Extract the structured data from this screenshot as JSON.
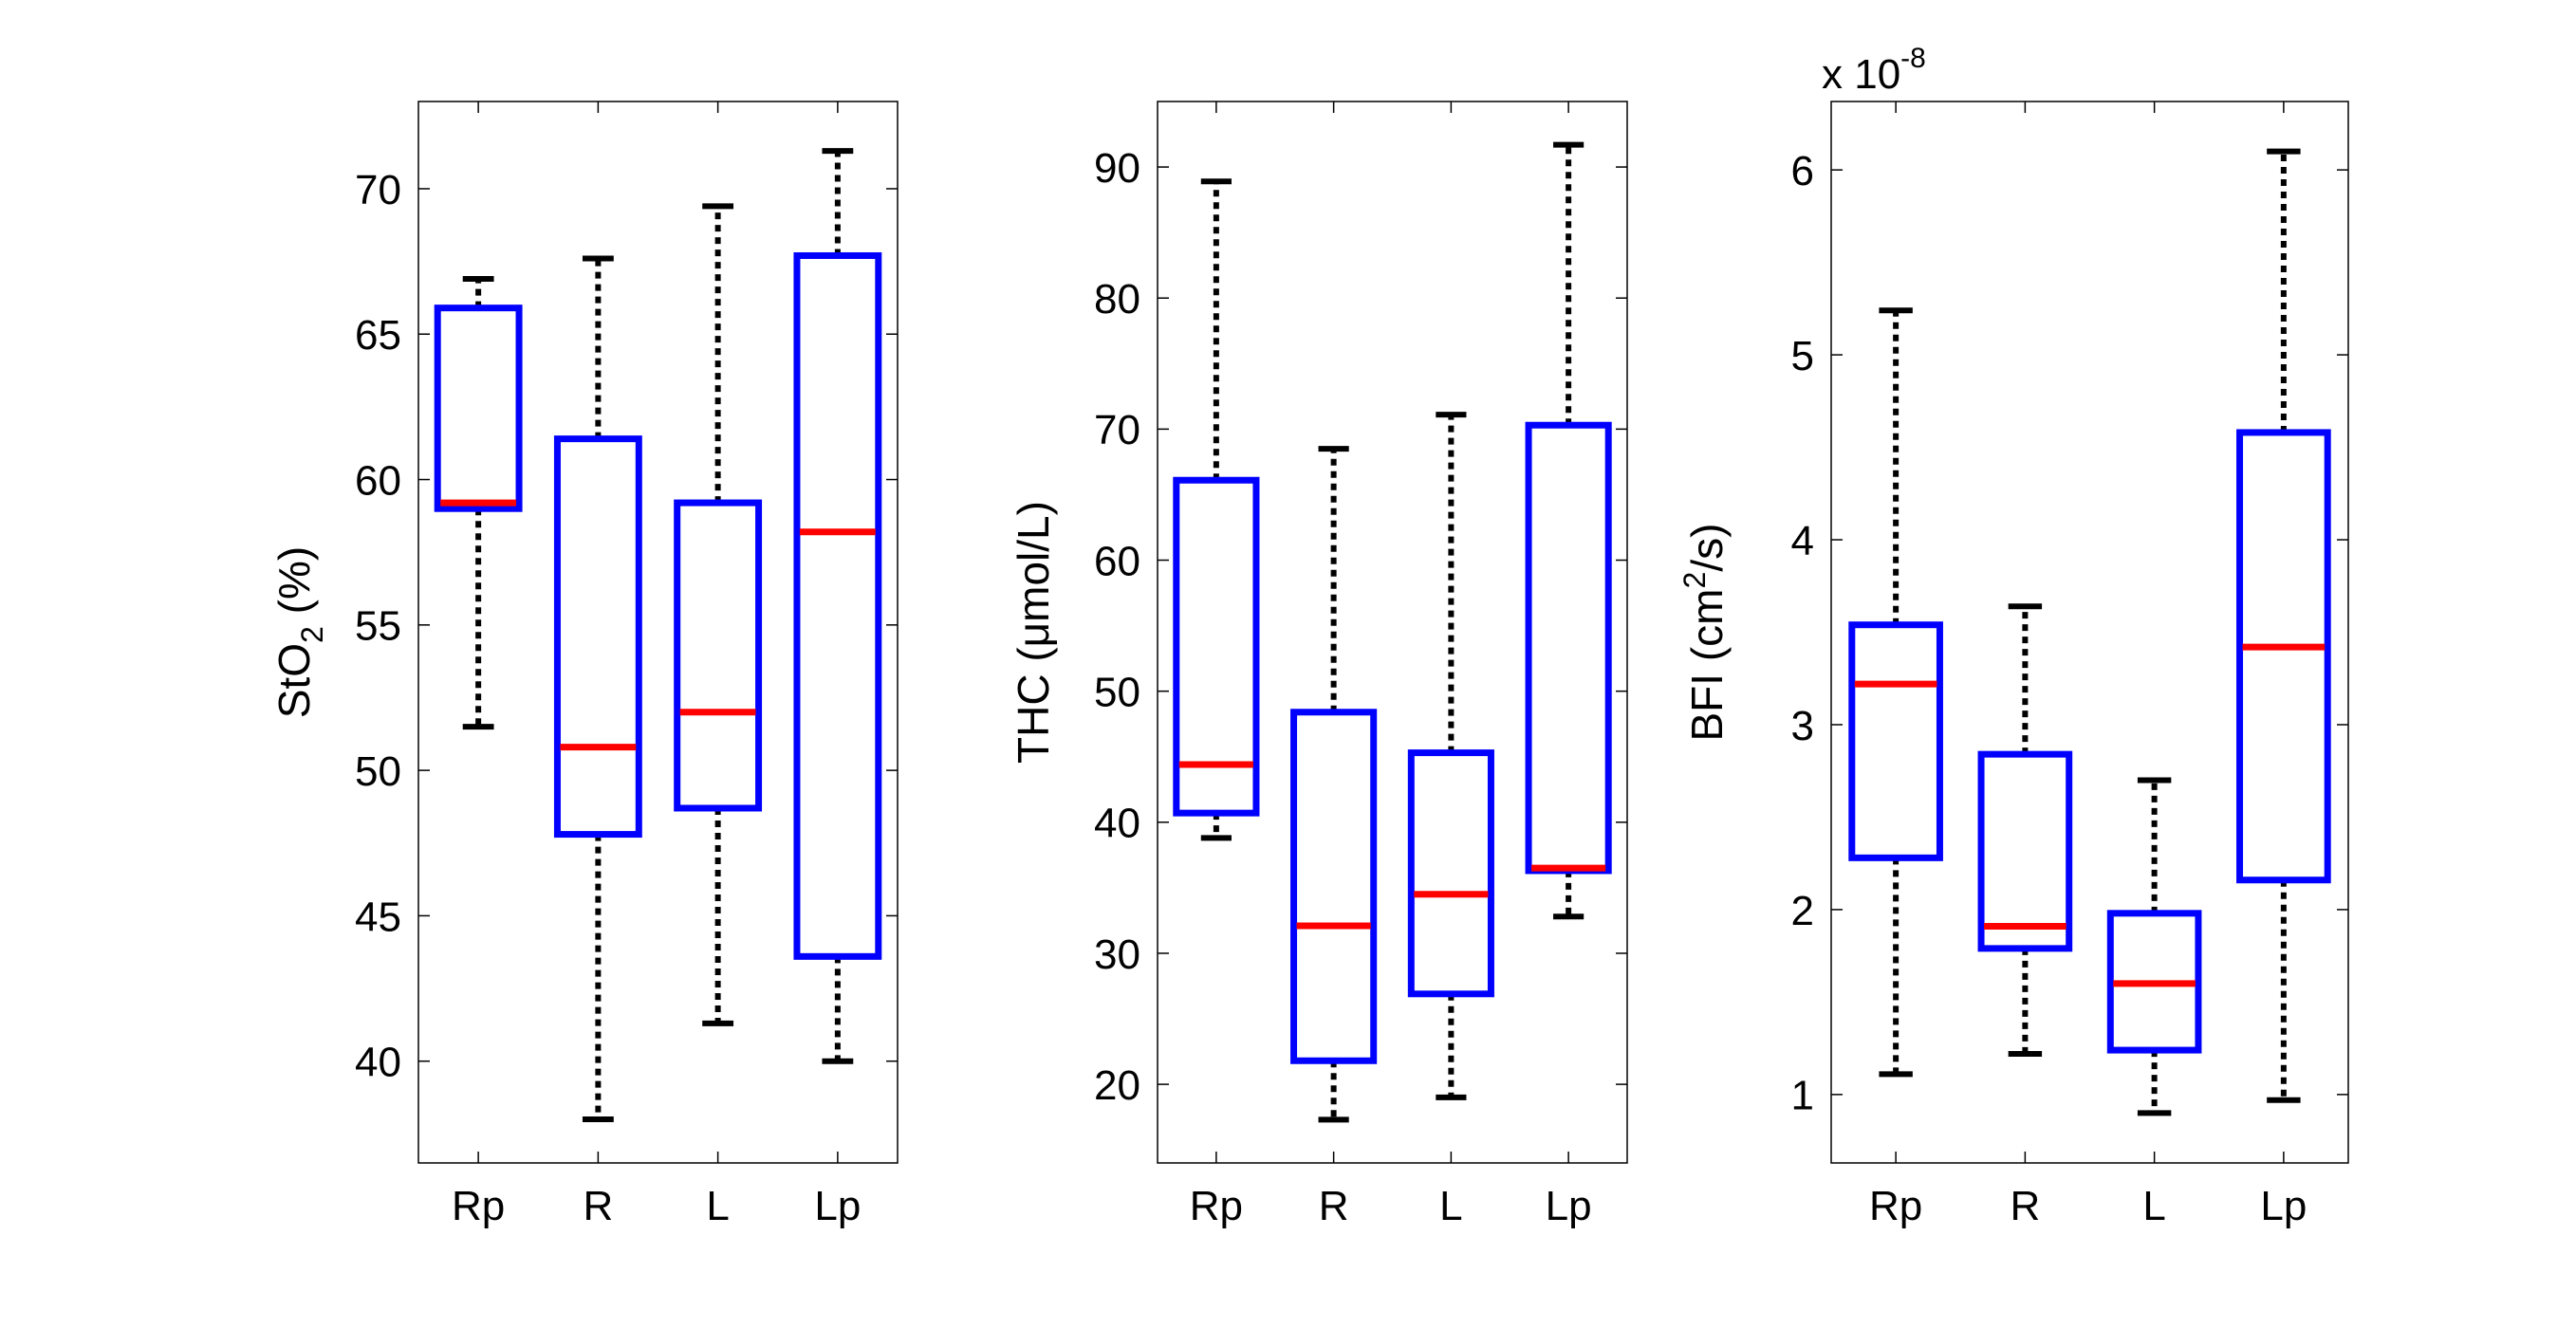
{
  "chart_data": [
    {
      "type": "box",
      "ylabel": "StO",
      "ylabel_sub": "2",
      "ylabel_tail": " (%)",
      "ylim": [
        36.5,
        73
      ],
      "yticks": [
        40,
        45,
        50,
        55,
        60,
        65,
        70
      ],
      "categories": [
        "Rp",
        "R",
        "L",
        "Lp"
      ],
      "boxes": [
        {
          "min": 51.5,
          "q1": 59.0,
          "median": 59.2,
          "q3": 65.9,
          "max": 66.9
        },
        {
          "min": 38.0,
          "q1": 47.8,
          "median": 50.8,
          "q3": 61.4,
          "max": 67.6
        },
        {
          "min": 41.3,
          "q1": 48.7,
          "median": 52.0,
          "q3": 59.2,
          "max": 69.4
        },
        {
          "min": 40.0,
          "q1": 43.6,
          "median": 58.2,
          "q3": 67.7,
          "max": 71.3
        }
      ]
    },
    {
      "type": "box",
      "ylabel": "THC (μmol/L)",
      "ylim": [
        14,
        95
      ],
      "yticks": [
        20,
        30,
        40,
        50,
        60,
        70,
        80,
        90
      ],
      "categories": [
        "Rp",
        "R",
        "L",
        "Lp"
      ],
      "boxes": [
        {
          "min": 38.8,
          "q1": 40.7,
          "median": 44.4,
          "q3": 66.1,
          "max": 88.9
        },
        {
          "min": 17.3,
          "q1": 21.8,
          "median": 32.1,
          "q3": 48.4,
          "max": 68.5
        },
        {
          "min": 19.0,
          "q1": 26.9,
          "median": 34.5,
          "q3": 45.3,
          "max": 71.1
        },
        {
          "min": 32.8,
          "q1": 36.3,
          "median": 36.5,
          "q3": 70.3,
          "max": 91.7
        }
      ]
    },
    {
      "type": "box",
      "ylabel": "BFI (cm",
      "ylabel_sup": "2",
      "ylabel_tail": "/s)",
      "scale_label": "x 10",
      "scale_exp": "-8",
      "ylim": [
        0.63,
        6.37
      ],
      "yticks": [
        1,
        2,
        3,
        4,
        5,
        6
      ],
      "categories": [
        "Rp",
        "R",
        "L",
        "Lp"
      ],
      "boxes": [
        {
          "min": 1.11,
          "q1": 2.28,
          "median": 3.22,
          "q3": 3.54,
          "max": 5.24
        },
        {
          "min": 1.22,
          "q1": 1.79,
          "median": 1.91,
          "q3": 2.84,
          "max": 3.64
        },
        {
          "min": 0.9,
          "q1": 1.24,
          "median": 1.6,
          "q3": 1.98,
          "max": 2.7
        },
        {
          "min": 0.97,
          "q1": 2.16,
          "median": 3.42,
          "q3": 4.58,
          "max": 6.1
        }
      ]
    }
  ],
  "colors": {
    "box": "#0000ff",
    "median": "#ff0000",
    "whisker": "#000000",
    "axis": "#000000"
  }
}
